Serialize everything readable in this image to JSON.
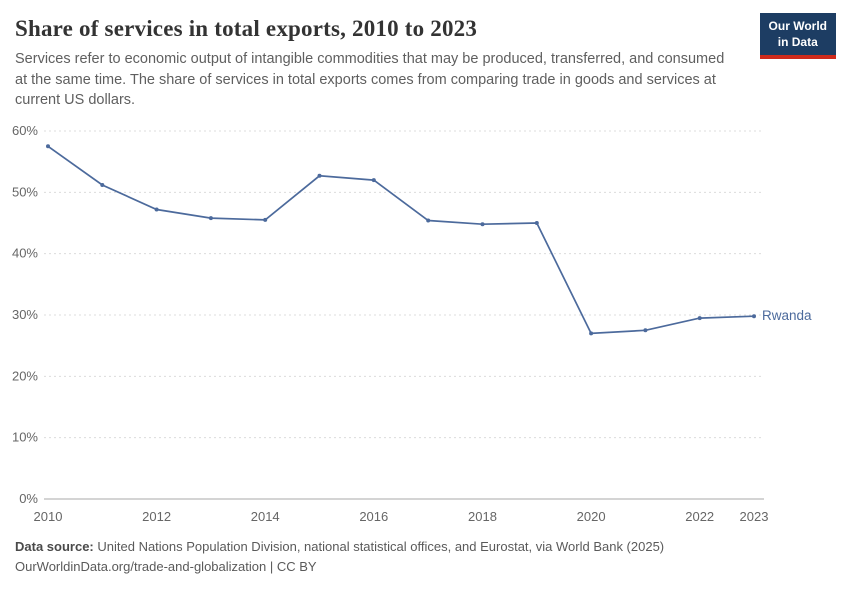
{
  "header": {
    "title": "Share of services in total exports, 2010 to 2023",
    "subtitle": "Services refer to economic output of intangible commodities that may be produced, transferred, and consumed at the same time. The share of services in total exports comes from comparing trade in goods and services at current US dollars.",
    "logo": {
      "line1": "Our World",
      "line2": "in Data"
    }
  },
  "chart_data": {
    "type": "line",
    "title": "Share of services in total exports, 2010 to 2023",
    "x": [
      2010,
      2011,
      2012,
      2013,
      2014,
      2015,
      2016,
      2017,
      2018,
      2019,
      2020,
      2021,
      2022,
      2023
    ],
    "series": [
      {
        "name": "Rwanda",
        "color": "#4c6a9c",
        "values": [
          57.5,
          51.2,
          47.2,
          45.8,
          45.5,
          52.7,
          52.0,
          45.4,
          44.8,
          45.0,
          27.0,
          27.5,
          29.5,
          29.8
        ]
      }
    ],
    "ylim": [
      0,
      60
    ],
    "yticks": [
      0,
      10,
      20,
      30,
      40,
      50,
      60
    ],
    "ytick_suffix": "%",
    "xticks": [
      2010,
      2012,
      2014,
      2016,
      2018,
      2020,
      2022,
      2023
    ],
    "grid": true,
    "legend_position": "end-of-line"
  },
  "footer": {
    "source_label": "Data source:",
    "source_text": "United Nations Population Division, national statistical offices, and Eurostat, via World Bank (2025)",
    "credit": "OurWorldinData.org/trade-and-globalization | CC BY"
  },
  "colors": {
    "line": "#4c6a9c",
    "grid": "#dcdcdc",
    "axis_line": "#a8a8a8",
    "axis_text": "#666666",
    "logo_bg": "#1d3d63",
    "logo_accent": "#cf2a1b"
  }
}
